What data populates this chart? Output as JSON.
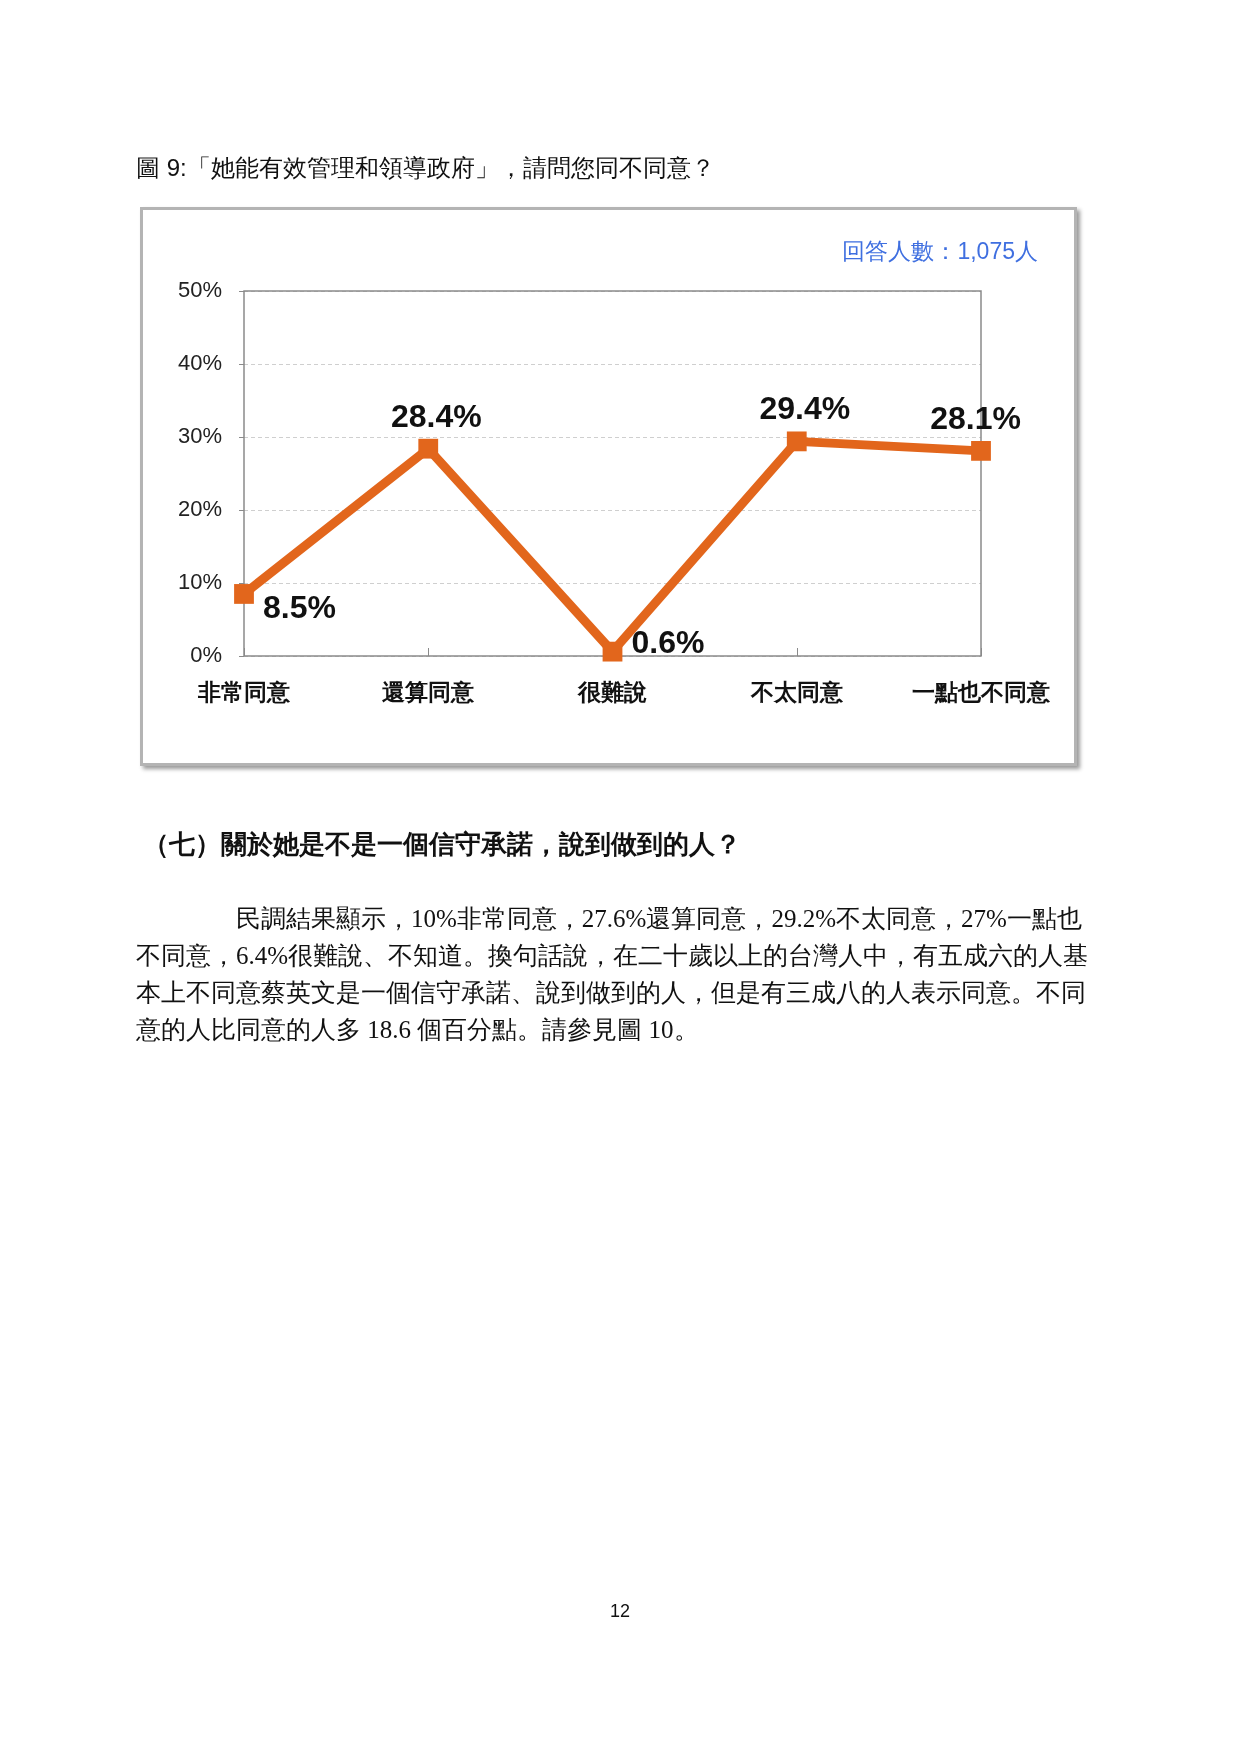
{
  "chart_data": {
    "type": "line",
    "title": "圖 9:「她能有效管理和領導政府」，請問您同不同意？",
    "categories": [
      "非常同意",
      "還算同意",
      "很難說",
      "不太同意",
      "一點也不同意"
    ],
    "series": [
      {
        "color": "#e2661c",
        "values": [
          8.5,
          28.4,
          0.6,
          29.4,
          28.1
        ],
        "value_labels": [
          "8.5%",
          "28.4%",
          "0.6%",
          "29.4%",
          "28.1%"
        ]
      }
    ],
    "ylim": [
      0,
      50
    ],
    "yticks": [
      {
        "value": 0,
        "label": "0%"
      },
      {
        "value": 10,
        "label": "10%"
      },
      {
        "value": 20,
        "label": "20%"
      },
      {
        "value": 30,
        "label": "30%"
      },
      {
        "value": 40,
        "label": "40%"
      },
      {
        "value": 50,
        "label": "50%"
      }
    ],
    "grid": "y",
    "marker": "square",
    "annotations": [
      "回答人數：1,075人",
      "（七）關於她是不是一個信守承諾，說到做到的人？",
      "民調結果顯示，10%非常同意，27.6%還算同意，29.2%不太同意，27%一點也不同意，6.4%很難說、不知道。換句話說，在二十歲以上的台灣人中，有五成六的人基本上不同意蔡英文是一個信守承諾、說到做到的人，但是有三成八的人表示同意。不同意的人比同意的人多 18.6 個百分點。請參見圖 10。",
      "12"
    ]
  }
}
